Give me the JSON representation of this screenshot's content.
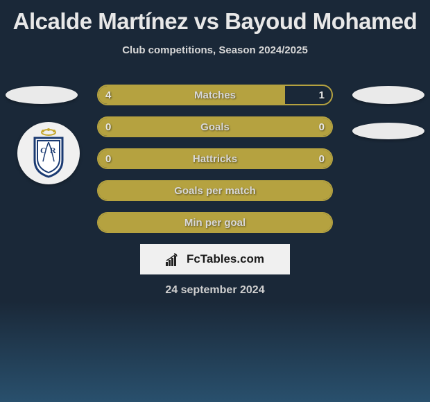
{
  "title": "Alcalde Martínez vs Bayoud Mohamed",
  "subtitle": "Club competitions, Season 2024/2025",
  "attribution": "FcTables.com",
  "date": "24 september 2024",
  "colors": {
    "bar_fill": "#b5a240",
    "bar_border": "#b5a240",
    "bg_top": "#1a2838",
    "bg_bottom": "#29506d",
    "ellipse": "#eaeaea",
    "text": "#d8d8d8"
  },
  "bars": [
    {
      "label": "Matches",
      "left": "4",
      "right": "1",
      "fill_mode": "split",
      "left_pct": 80,
      "show_values": true
    },
    {
      "label": "Goals",
      "left": "0",
      "right": "0",
      "fill_mode": "full",
      "left_pct": 100,
      "show_values": true
    },
    {
      "label": "Hattricks",
      "left": "0",
      "right": "0",
      "fill_mode": "full",
      "left_pct": 100,
      "show_values": true
    },
    {
      "label": "Goals per match",
      "left": "",
      "right": "",
      "fill_mode": "full",
      "left_pct": 100,
      "show_values": false
    },
    {
      "label": "Min per goal",
      "left": "",
      "right": "",
      "fill_mode": "full",
      "left_pct": 100,
      "show_values": false
    }
  ]
}
